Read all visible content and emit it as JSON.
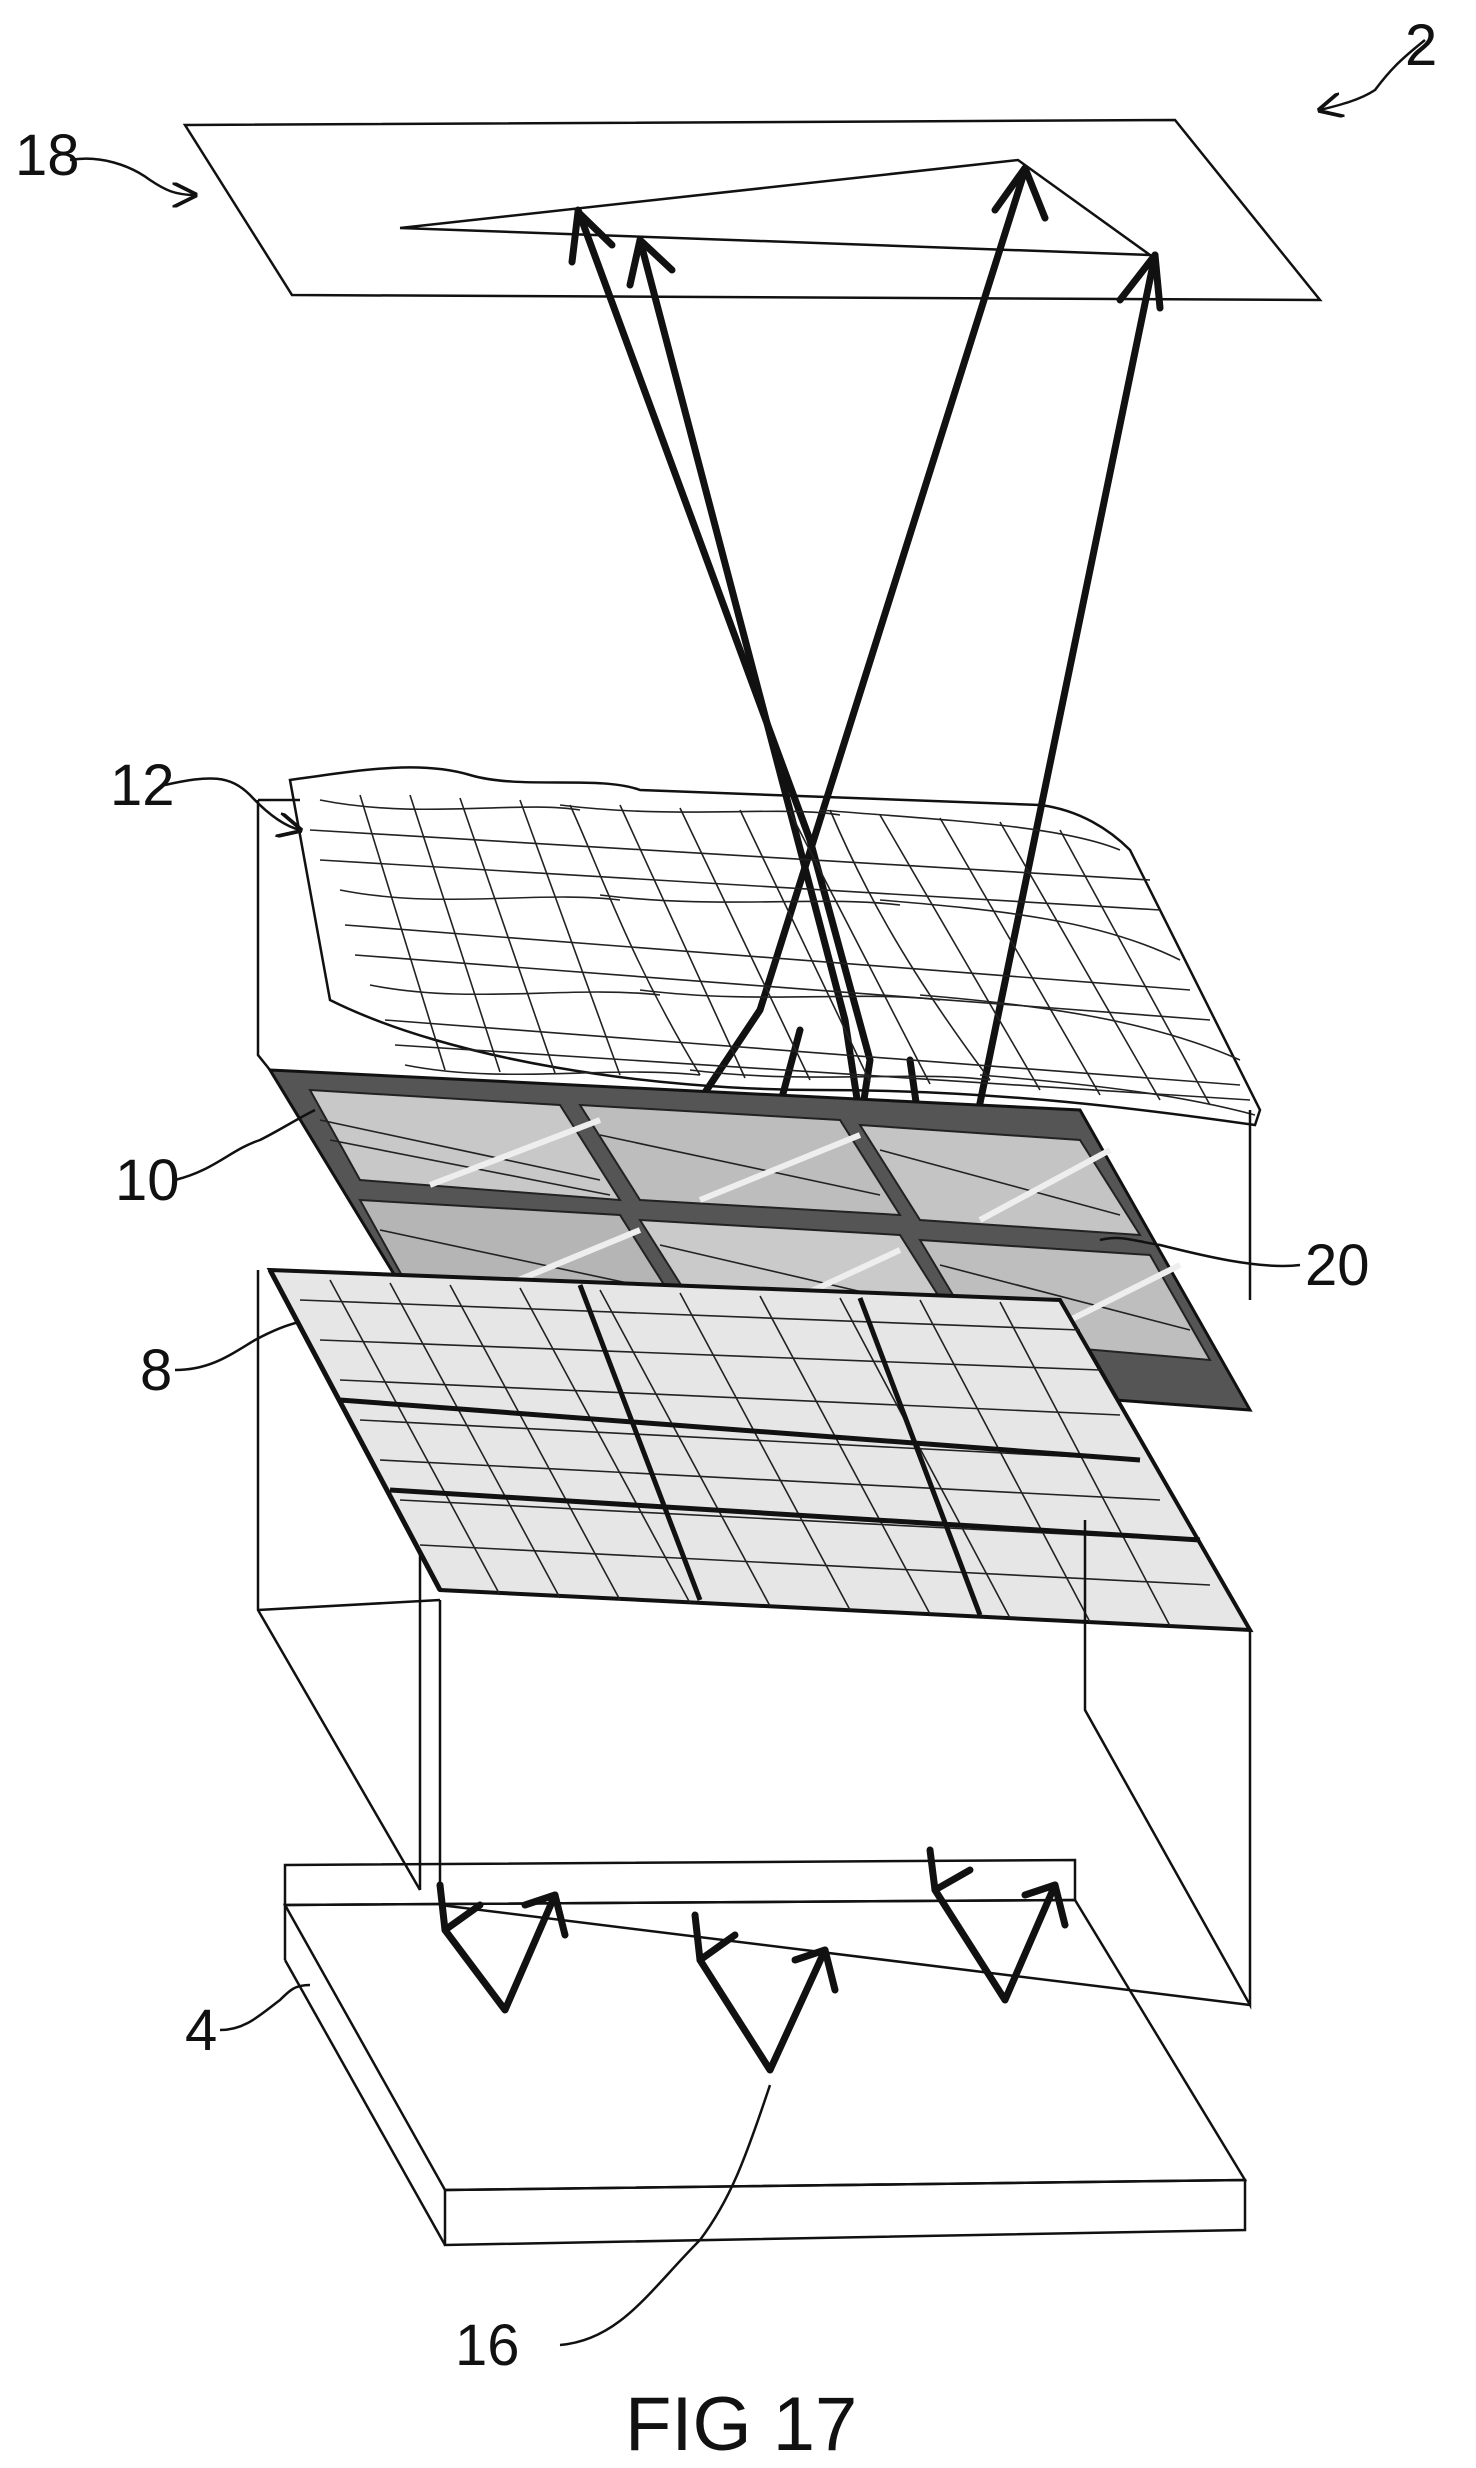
{
  "figure": {
    "caption": "FIG 17",
    "labels": {
      "device": "2",
      "image_plane": "18",
      "lens_array": "12",
      "layer_10": "10",
      "layer_20": "20",
      "layer_8": "8",
      "base": "4",
      "emitters": "16"
    }
  }
}
